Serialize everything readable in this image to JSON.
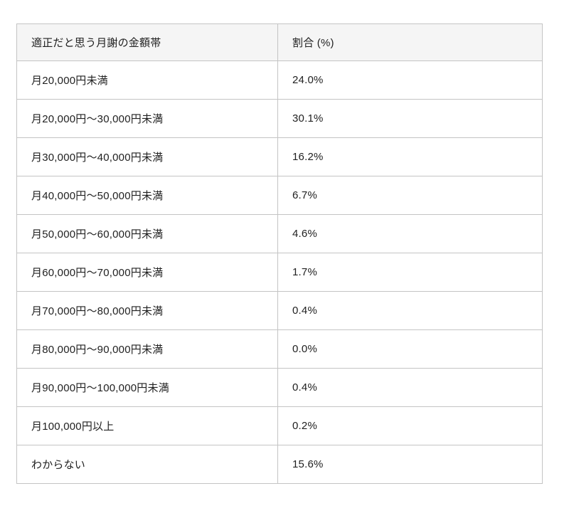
{
  "colors": {
    "page_background": "#ffffff",
    "header_background": "#f5f5f5",
    "border": "#c4c4c4",
    "text": "#212121"
  },
  "table": {
    "columns": {
      "range_header": "適正だと思う月謝の金額帯",
      "percent_header": "割合 (%)"
    },
    "rows": [
      {
        "range": "月20,000円未満",
        "percent": "24.0%"
      },
      {
        "range": "月20,000円〜30,000円未満",
        "percent": "30.1%"
      },
      {
        "range": "月30,000円〜40,000円未満",
        "percent": "16.2%"
      },
      {
        "range": "月40,000円〜50,000円未満",
        "percent": "6.7%"
      },
      {
        "range": "月50,000円〜60,000円未満",
        "percent": "4.6%"
      },
      {
        "range": "月60,000円〜70,000円未満",
        "percent": "1.7%"
      },
      {
        "range": "月70,000円〜80,000円未満",
        "percent": "0.4%"
      },
      {
        "range": "月80,000円〜90,000円未満",
        "percent": "0.0%"
      },
      {
        "range": "月90,000円〜100,000円未満",
        "percent": "0.4%"
      },
      {
        "range": "月100,000円以上",
        "percent": "0.2%"
      },
      {
        "range": "わからない",
        "percent": "15.6%"
      }
    ]
  },
  "chart_data": {
    "type": "table",
    "title": "",
    "columns": [
      "適正だと思う月謝の金額帯",
      "割合 (%)"
    ],
    "categories": [
      "月20,000円未満",
      "月20,000円〜30,000円未満",
      "月30,000円〜40,000円未満",
      "月40,000円〜50,000円未満",
      "月50,000円〜60,000円未満",
      "月60,000円〜70,000円未満",
      "月70,000円〜80,000円未満",
      "月80,000円〜90,000円未満",
      "月90,000円〜100,000円未満",
      "月100,000円以上",
      "わからない"
    ],
    "values": [
      24.0,
      30.1,
      16.2,
      6.7,
      4.6,
      1.7,
      0.4,
      0.0,
      0.4,
      0.2,
      15.6
    ],
    "value_unit": "%"
  }
}
